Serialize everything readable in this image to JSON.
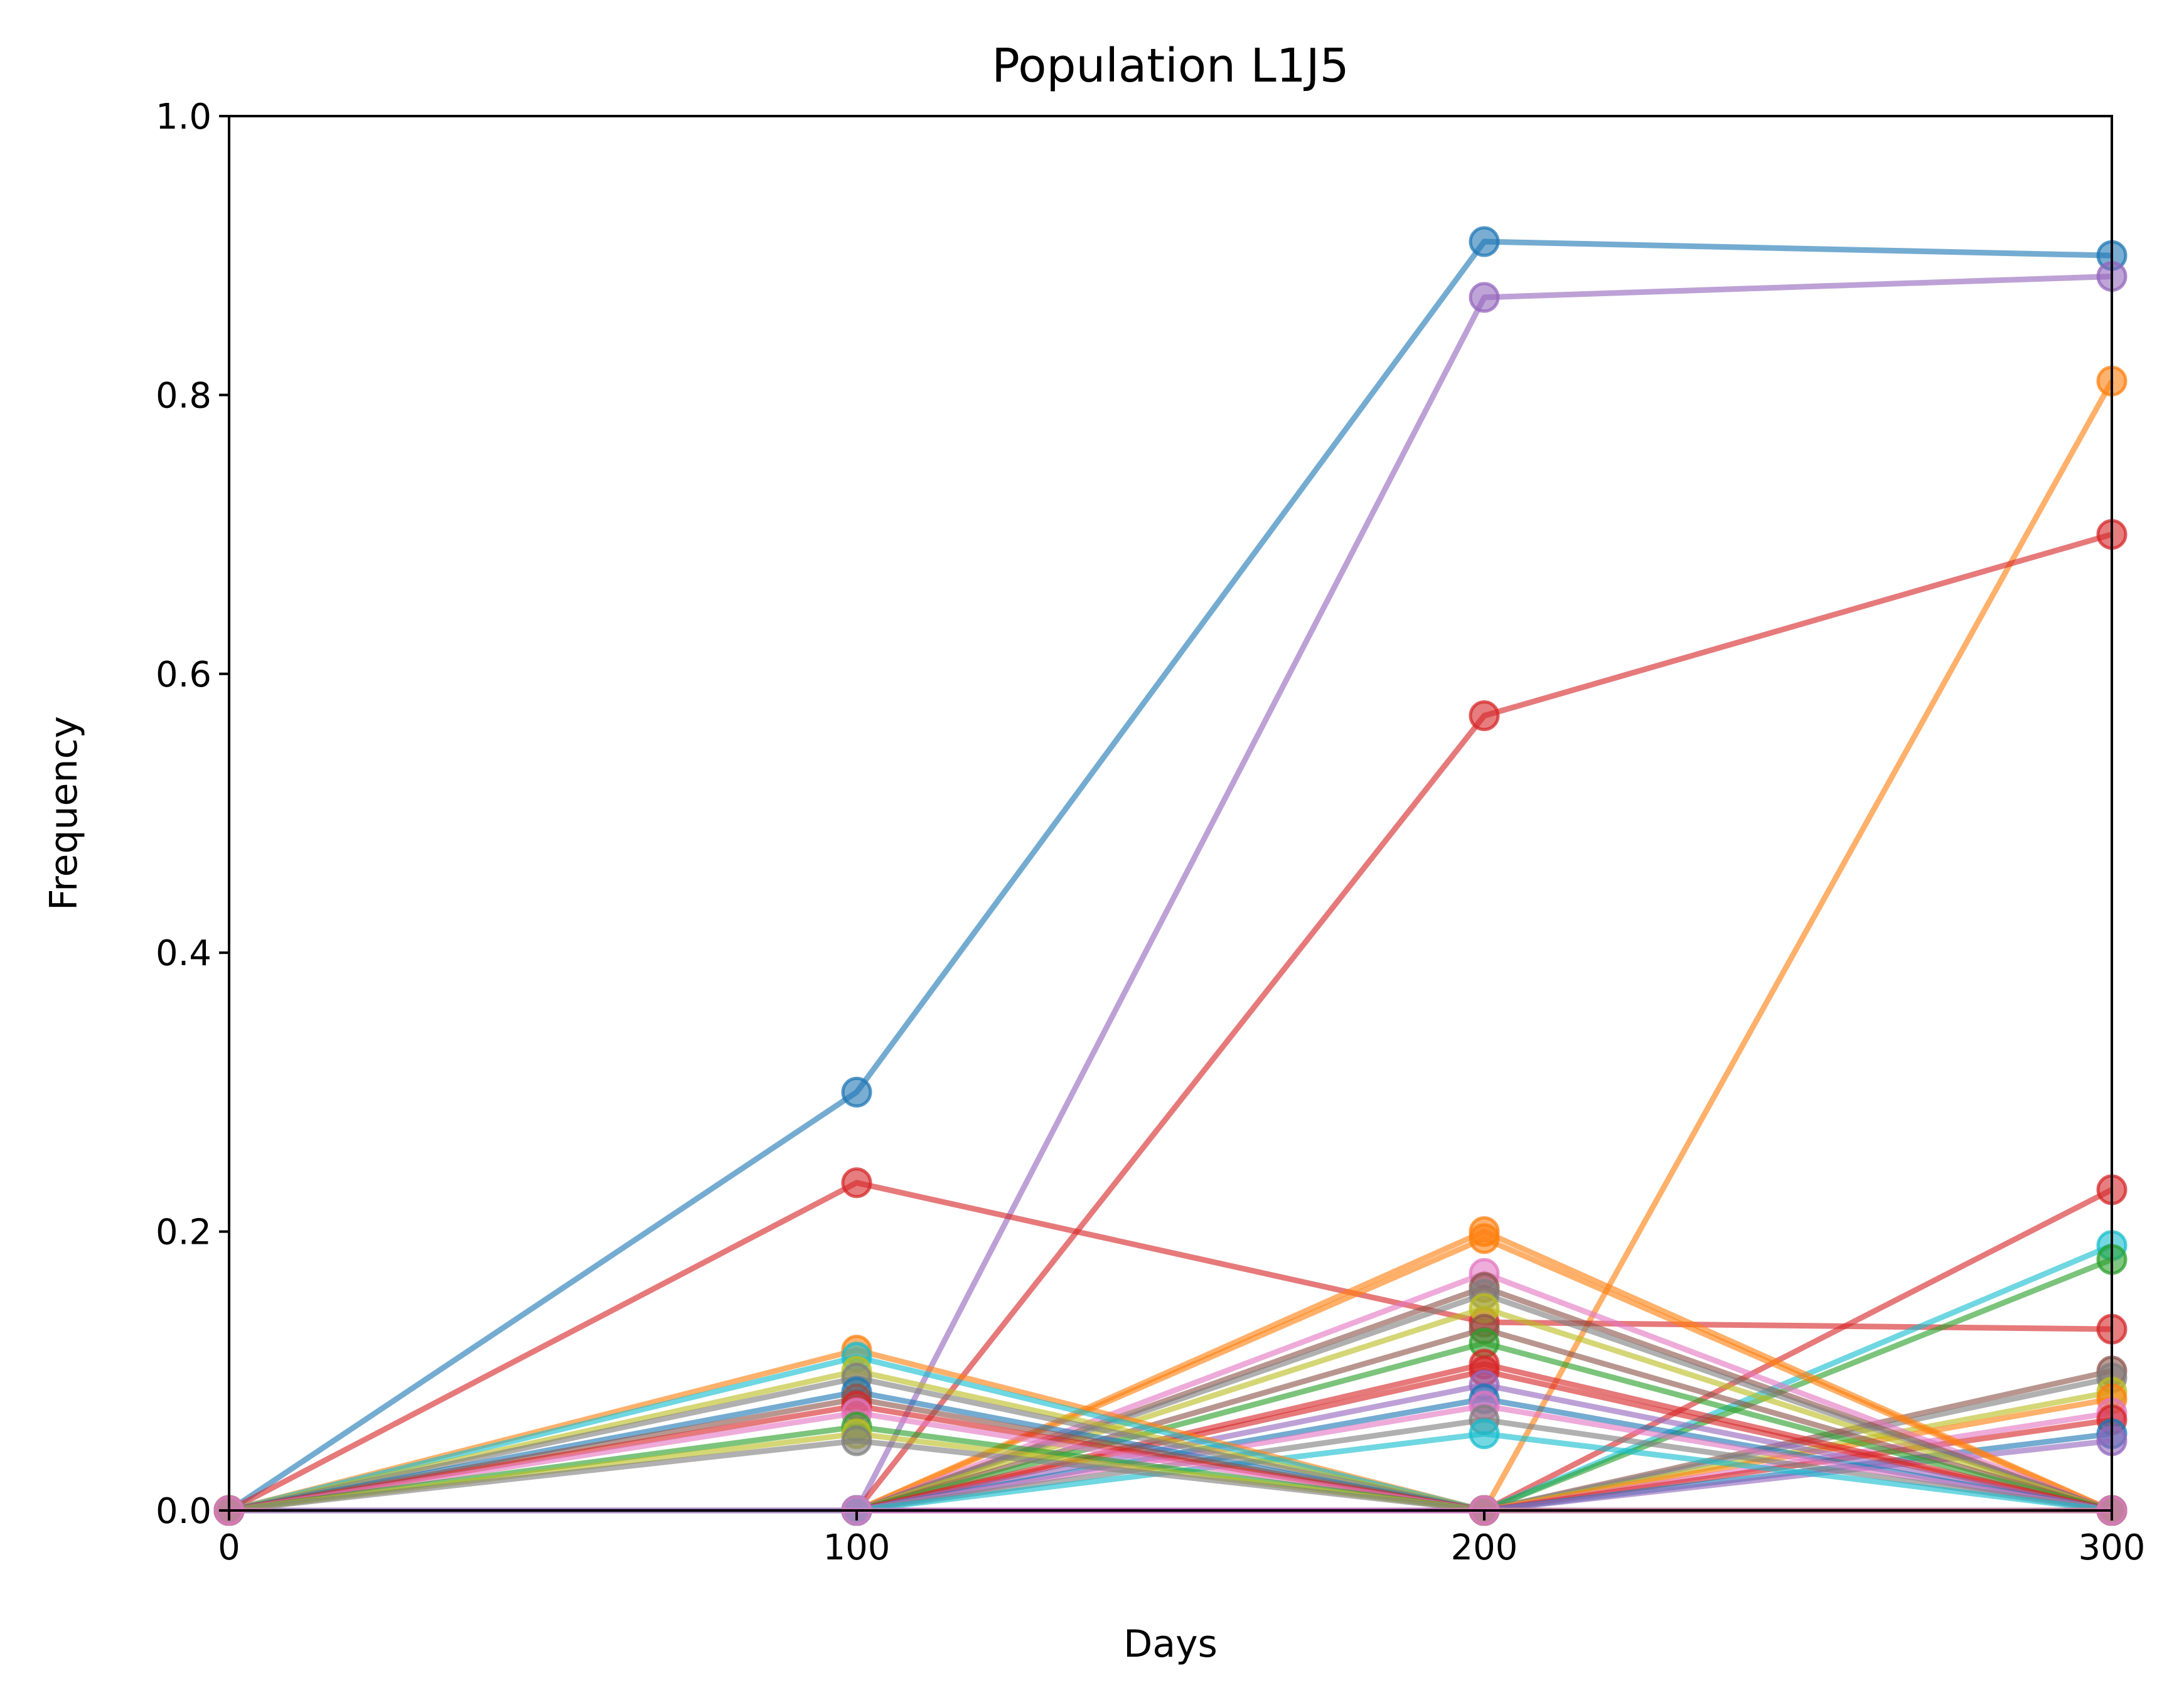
{
  "chart_data": {
    "type": "line",
    "title": "Population L1J5",
    "xlabel": "Days",
    "ylabel": "Frequency",
    "xlim": [
      0,
      300
    ],
    "ylim": [
      0,
      1.0
    ],
    "x_ticks": [
      "0",
      "100",
      "200",
      "300"
    ],
    "y_ticks": [
      "0.0",
      "0.2",
      "0.4",
      "0.6",
      "0.8",
      "1.0"
    ],
    "grid": false,
    "legend": "none",
    "x": [
      0,
      100,
      200,
      300
    ],
    "series": [
      {
        "color": "#1f77b4",
        "values": [
          0,
          0.3,
          0.91,
          0.9
        ]
      },
      {
        "color": "#9467bd",
        "values": [
          0,
          0,
          0.87,
          0.885
        ]
      },
      {
        "color": "#ff7f0e",
        "values": [
          0,
          0,
          0,
          0.81
        ]
      },
      {
        "color": "#d62728",
        "values": [
          0,
          0,
          0.57,
          0.7
        ]
      },
      {
        "color": "#d62728",
        "values": [
          0,
          0.235,
          0.135,
          0.13
        ]
      },
      {
        "color": "#d62728",
        "values": [
          0,
          0,
          0,
          0.23
        ]
      },
      {
        "color": "#17becf",
        "values": [
          0,
          0,
          0,
          0.19
        ]
      },
      {
        "color": "#2ca02c",
        "values": [
          0,
          0,
          0,
          0.18
        ]
      },
      {
        "color": "#8c564b",
        "values": [
          0,
          0,
          0,
          0.1
        ]
      },
      {
        "color": "#7f7f7f",
        "values": [
          0,
          0,
          0,
          0.095
        ]
      },
      {
        "color": "#bcbd22",
        "values": [
          0,
          0,
          0,
          0.085
        ]
      },
      {
        "color": "#ff7f0e",
        "values": [
          0,
          0,
          0,
          0.08
        ]
      },
      {
        "color": "#e377c2",
        "values": [
          0,
          0,
          0,
          0.07
        ]
      },
      {
        "color": "#d62728",
        "values": [
          0,
          0,
          0,
          0.065
        ]
      },
      {
        "color": "#1f77b4",
        "values": [
          0,
          0,
          0,
          0.055
        ]
      },
      {
        "color": "#9467bd",
        "values": [
          0,
          0,
          0,
          0.05
        ]
      },
      {
        "color": "#ff7f0e",
        "values": [
          0,
          0,
          0.2,
          0
        ]
      },
      {
        "color": "#ff7f0e",
        "values": [
          0,
          0,
          0.195,
          0
        ]
      },
      {
        "color": "#e377c2",
        "values": [
          0,
          0,
          0.17,
          0
        ]
      },
      {
        "color": "#8c564b",
        "values": [
          0,
          0,
          0.16,
          0
        ]
      },
      {
        "color": "#7f7f7f",
        "values": [
          0,
          0,
          0.155,
          0
        ]
      },
      {
        "color": "#bcbd22",
        "values": [
          0,
          0,
          0.145,
          0
        ]
      },
      {
        "color": "#8c564b",
        "values": [
          0,
          0,
          0.13,
          0
        ]
      },
      {
        "color": "#2ca02c",
        "values": [
          0,
          0,
          0.12,
          0
        ]
      },
      {
        "color": "#d62728",
        "values": [
          0,
          0,
          0.105,
          0
        ]
      },
      {
        "color": "#d62728",
        "values": [
          0,
          0,
          0.1,
          0
        ]
      },
      {
        "color": "#9467bd",
        "values": [
          0,
          0,
          0.09,
          0
        ]
      },
      {
        "color": "#1f77b4",
        "values": [
          0,
          0,
          0.08,
          0
        ]
      },
      {
        "color": "#e377c2",
        "values": [
          0,
          0,
          0.075,
          0
        ]
      },
      {
        "color": "#7f7f7f",
        "values": [
          0,
          0,
          0.065,
          0
        ]
      },
      {
        "color": "#17becf",
        "values": [
          0,
          0,
          0.055,
          0
        ]
      },
      {
        "color": "#ff7f0e",
        "values": [
          0,
          0.115,
          0,
          0
        ]
      },
      {
        "color": "#17becf",
        "values": [
          0,
          0.11,
          0,
          0
        ]
      },
      {
        "color": "#bcbd22",
        "values": [
          0,
          0.1,
          0,
          0
        ]
      },
      {
        "color": "#7f7f7f",
        "values": [
          0,
          0.095,
          0,
          0
        ]
      },
      {
        "color": "#1f77b4",
        "values": [
          0,
          0.085,
          0,
          0
        ]
      },
      {
        "color": "#8c564b",
        "values": [
          0,
          0.08,
          0,
          0
        ]
      },
      {
        "color": "#d62728",
        "values": [
          0,
          0.075,
          0,
          0
        ]
      },
      {
        "color": "#e377c2",
        "values": [
          0,
          0.07,
          0,
          0
        ]
      },
      {
        "color": "#2ca02c",
        "values": [
          0,
          0.06,
          0,
          0
        ]
      },
      {
        "color": "#bcbd22",
        "values": [
          0,
          0.055,
          0,
          0
        ]
      },
      {
        "color": "#7f7f7f",
        "values": [
          0,
          0.05,
          0,
          0
        ]
      },
      {
        "color": "#e377c2",
        "values": [
          0,
          0,
          0,
          0
        ]
      }
    ]
  }
}
